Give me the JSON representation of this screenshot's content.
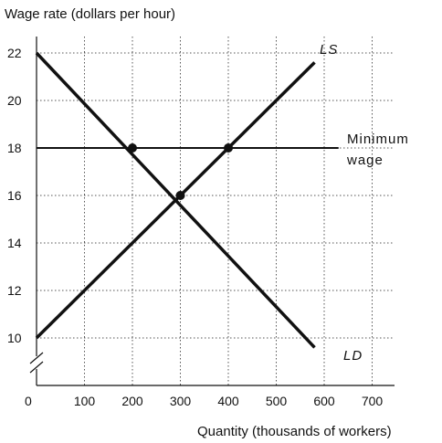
{
  "chart_data": {
    "type": "line",
    "ylabel": "Wage rate (dollars per hour)",
    "xlabel": "Quantity (thousands of workers)",
    "origin_label": "0",
    "xlim": [
      0,
      800
    ],
    "ylim": [
      8.9,
      22.5
    ],
    "x_ticks": [
      100,
      200,
      300,
      400,
      500,
      600,
      700
    ],
    "y_ticks": [
      10,
      12,
      14,
      16,
      18,
      20,
      22
    ],
    "grid": true,
    "series": [
      {
        "name": "LS",
        "x": [
          0,
          580
        ],
        "y": [
          10,
          21.6
        ]
      },
      {
        "name": "LD",
        "x": [
          0,
          580
        ],
        "y": [
          22,
          9.6
        ]
      }
    ],
    "minimum_wage": {
      "label_line1": "Minimum",
      "label_line2": "wage",
      "y": 18,
      "x_range": [
        0,
        630
      ]
    },
    "points": [
      {
        "x": 200,
        "y": 18
      },
      {
        "x": 400,
        "y": 18
      },
      {
        "x": 300,
        "y": 16
      }
    ]
  }
}
